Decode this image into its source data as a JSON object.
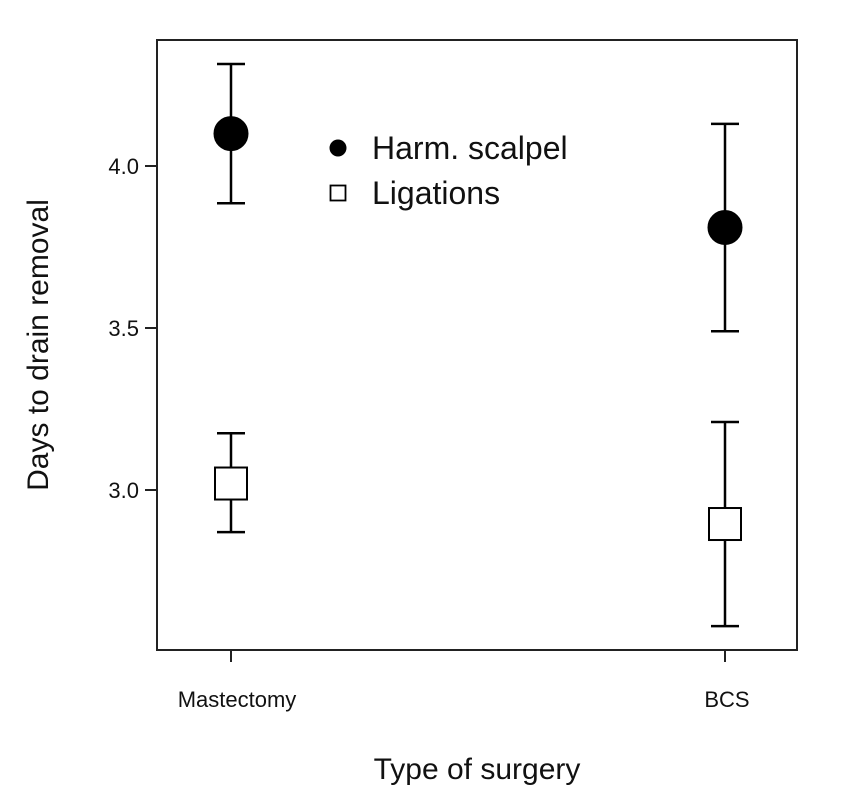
{
  "chart_data": {
    "type": "scatter",
    "xlabel": "Type of surgery",
    "ylabel": "Days to drain removal",
    "categories": [
      "Mastectomy",
      "BCS"
    ],
    "y_ticks": [
      3.0,
      3.5,
      4.0
    ],
    "ylim": [
      2.55,
      4.41
    ],
    "grid": false,
    "legend_position": "top-center",
    "series": [
      {
        "name": "Harm. scalpel",
        "marker": "filled-circle",
        "color": "#000000",
        "values": [
          4.1,
          3.81
        ],
        "lower": [
          3.885,
          3.49
        ],
        "upper": [
          4.315,
          4.13
        ]
      },
      {
        "name": "Ligations",
        "marker": "open-square",
        "color": "#000000",
        "values": [
          3.02,
          2.895
        ],
        "lower": [
          2.87,
          2.58
        ],
        "upper": [
          3.175,
          3.21
        ]
      }
    ]
  }
}
